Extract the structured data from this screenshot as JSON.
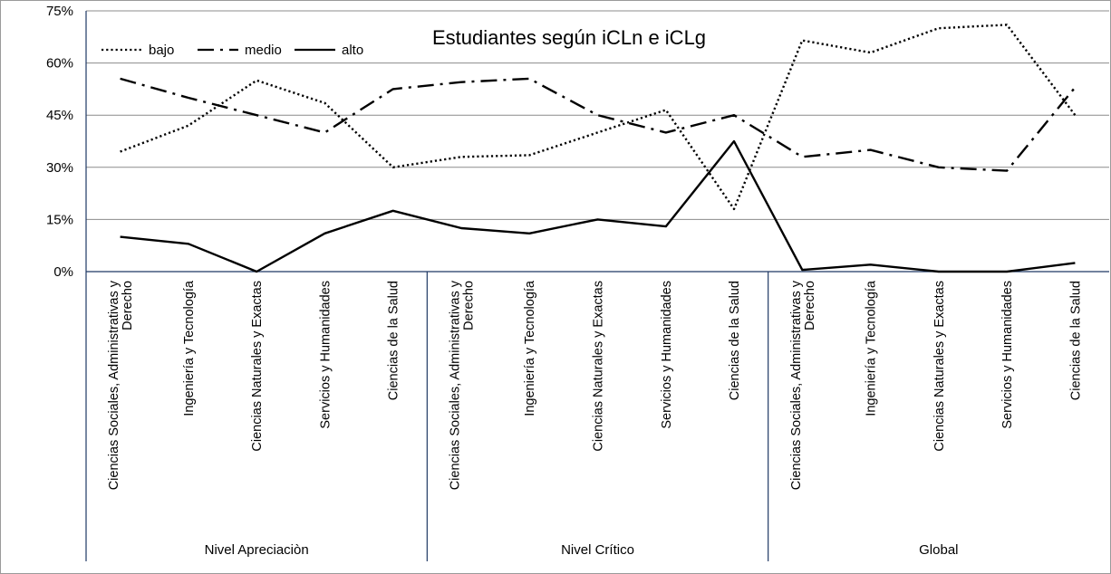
{
  "chart_data": {
    "type": "line",
    "title": "Estudiantes según iCLn e iCLg",
    "xlabel": "",
    "ylabel": "",
    "ylim": [
      0,
      75
    ],
    "yticks": [
      "0%",
      "15%",
      "30%",
      "45%",
      "60%",
      "75%"
    ],
    "grid": "horizontal",
    "legend_position": "top-left",
    "categories": [
      "Ciencias Sociales, Administrativas y Derecho",
      "Ingeniería y Tecnología",
      "Ciencias Naturales y Exactas",
      "Servicios y Humanidades",
      "Ciencias de la Salud",
      "Ciencias Sociales, Administrativas y Derecho",
      "Ingeniería y Tecnología",
      "Ciencias Naturales y Exactas",
      "Servicios y Humanidades",
      "Ciencias de la Salud",
      "Ciencias Sociales, Administrativas y Derecho",
      "Ingeniería y Tecnología",
      "Ciencias Naturales y Exactas",
      "Servicios y Humanidades",
      "Ciencias de la Salud"
    ],
    "category_lines": [
      [
        "Ciencias Sociales, Administrativas y",
        "Derecho"
      ],
      [
        "Ingeniería y Tecnología"
      ],
      [
        "Ciencias Naturales y Exactas"
      ],
      [
        "Servicios y Humanidades"
      ],
      [
        "Ciencias de la Salud"
      ],
      [
        "Ciencias Sociales, Administrativas y",
        "Derecho"
      ],
      [
        "Ingeniería y Tecnología"
      ],
      [
        "Ciencias Naturales y Exactas"
      ],
      [
        "Servicios y Humanidades"
      ],
      [
        "Ciencias de la Salud"
      ],
      [
        "Ciencias Sociales, Administrativas y",
        "Derecho"
      ],
      [
        "Ingeniería y Tecnología"
      ],
      [
        "Ciencias Naturales y Exactas"
      ],
      [
        "Servicios y Humanidades"
      ],
      [
        "Ciencias de la Salud"
      ]
    ],
    "groups": [
      {
        "label": "Nivel Apreciaciòn",
        "span": 5
      },
      {
        "label": "Nivel Crítico",
        "span": 5
      },
      {
        "label": "Global",
        "span": 5
      }
    ],
    "series": [
      {
        "name": "bajo",
        "style": "dotted",
        "values": [
          34.5,
          42,
          55,
          48.5,
          30,
          33,
          33.5,
          40,
          46.5,
          18,
          66.5,
          63,
          70,
          71,
          45
        ]
      },
      {
        "name": "medio",
        "style": "dashdot",
        "values": [
          55.5,
          50,
          45,
          40,
          52.5,
          54.5,
          55.5,
          45,
          40,
          45,
          33,
          35,
          30,
          29,
          53
        ]
      },
      {
        "name": "alto",
        "style": "solid",
        "values": [
          10,
          8,
          0,
          11,
          17.5,
          12.5,
          11,
          15,
          13,
          37.5,
          0.5,
          2,
          0,
          0,
          2.5
        ]
      }
    ]
  }
}
